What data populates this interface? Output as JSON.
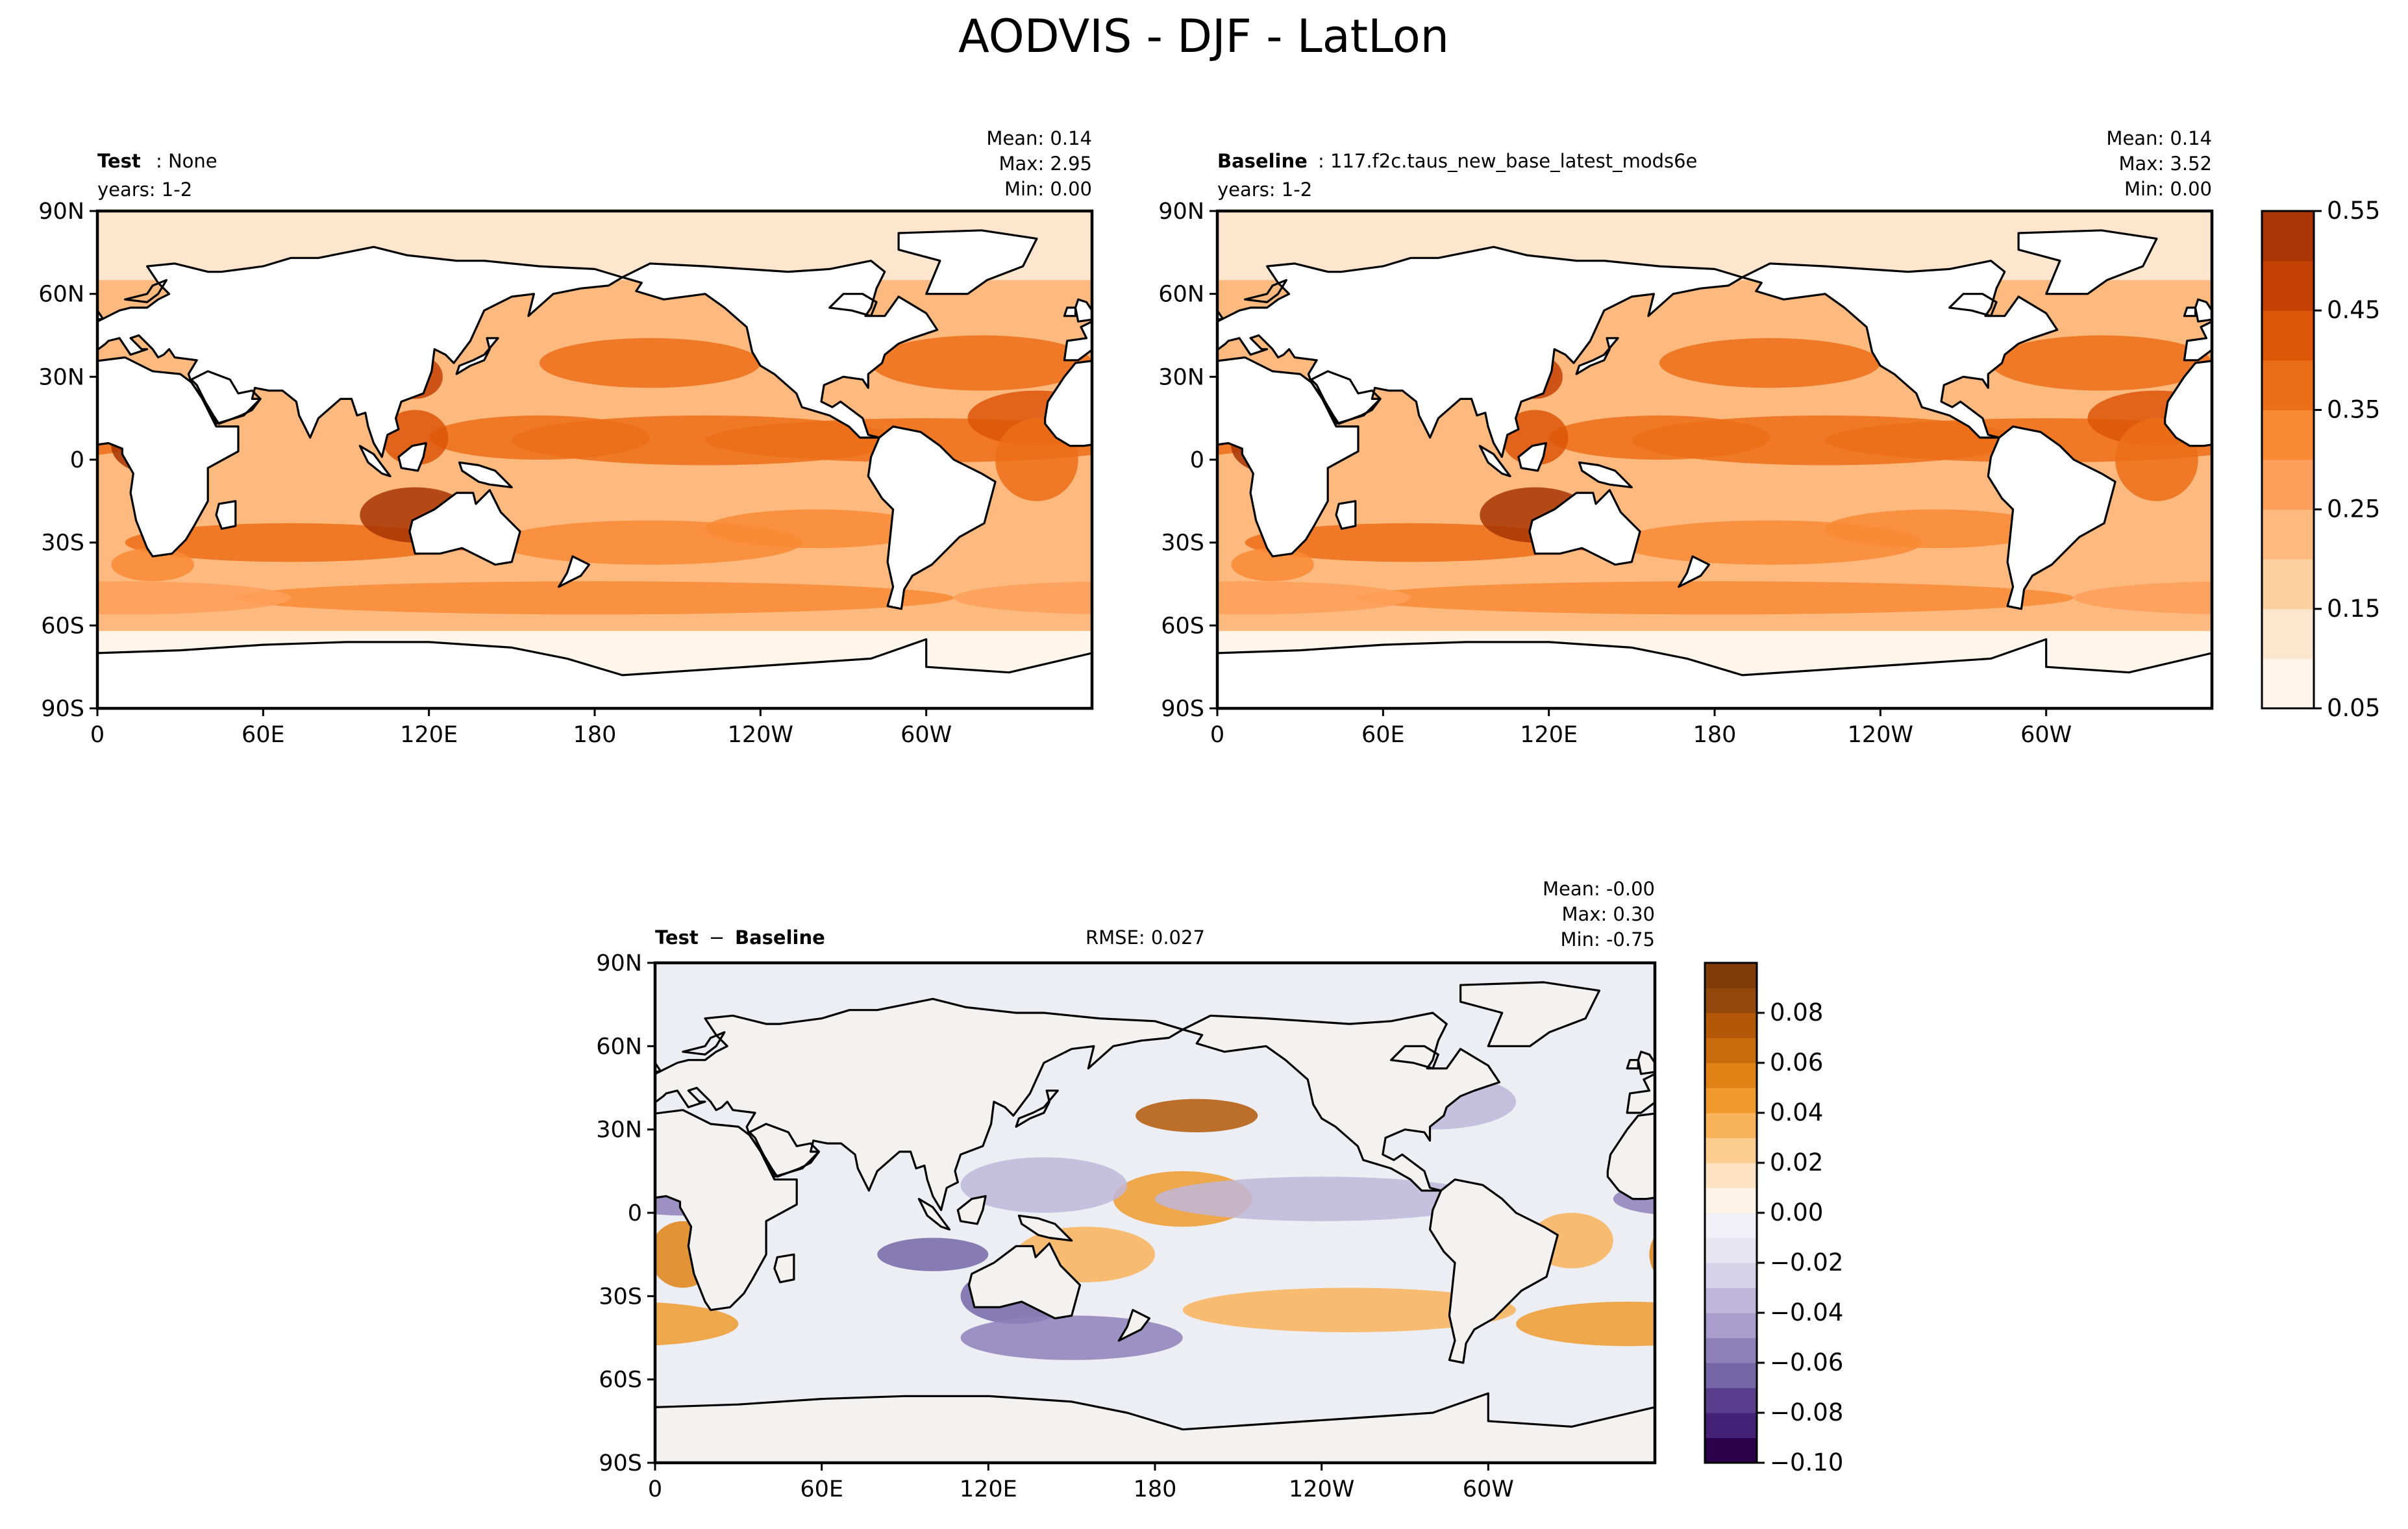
{
  "figure_title": "AODVIS - DJF - LatLon",
  "colors": {
    "land": "#ffffff",
    "coast": "#000000",
    "ocean_diff": "#eceef3",
    "oranges": [
      "#fff5eb",
      "#fee6ce",
      "#fdd0a2",
      "#fdb97e",
      "#fd9f5a",
      "#f98a35",
      "#ec6d18",
      "#dd5508",
      "#c44103",
      "#a83503",
      "#8c2d04",
      "#7f2704"
    ],
    "puor_neg": [
      "#2d004b",
      "#432177",
      "#5a3d8c",
      "#7566a8",
      "#8e80b8",
      "#a89dcb",
      "#bfb7da",
      "#d5d1e8",
      "#e7e5f1",
      "#f1f0f6"
    ],
    "puor_pos": [
      "#fdf3e6",
      "#fde3c3",
      "#fdcc8f",
      "#f9b35b",
      "#f09a2d",
      "#e08214",
      "#c96a0d",
      "#b35806",
      "#94470a",
      "#7f3b08"
    ]
  },
  "chart_data": [
    {
      "type": "heatmap",
      "id": "test",
      "label_bold": "Test",
      "label_rest": ": None",
      "years": "years: 1-2",
      "stats": {
        "mean": "Mean:  0.14",
        "max": "Max:  2.95",
        "min": "Min:  0.00"
      },
      "xlabels": [
        "0",
        "60E",
        "120E",
        "180",
        "120W",
        "60W"
      ],
      "ylabels": [
        "90N",
        "60N",
        "30N",
        "0",
        "30S",
        "60S",
        "90S"
      ],
      "lon_range": [
        0,
        360
      ],
      "lat_range": [
        -90,
        90
      ],
      "colormap": "oranges",
      "levels": [
        0.05,
        0.1,
        0.15,
        0.2,
        0.25,
        0.3,
        0.35,
        0.4,
        0.45,
        0.5,
        0.55
      ]
    },
    {
      "type": "heatmap",
      "id": "baseline",
      "label_bold": "Baseline",
      "label_rest": ": 117.f2c.taus_new_base_latest_mods6e",
      "years": "years: 1-2",
      "stats": {
        "mean": "Mean:  0.14",
        "max": "Max:  3.52",
        "min": "Min:  0.00"
      },
      "xlabels": [
        "0",
        "60E",
        "120E",
        "180",
        "120W",
        "60W"
      ],
      "ylabels": [
        "90N",
        "60N",
        "30N",
        "0",
        "30S",
        "60S",
        "90S"
      ],
      "lon_range": [
        0,
        360
      ],
      "lat_range": [
        -90,
        90
      ],
      "colormap": "oranges",
      "levels": [
        0.05,
        0.1,
        0.15,
        0.2,
        0.25,
        0.3,
        0.35,
        0.4,
        0.45,
        0.5,
        0.55
      ]
    },
    {
      "type": "heatmap",
      "id": "diff",
      "label_bold": "Test",
      "label_minus": " − ",
      "label_bold2": "Baseline",
      "rmse": "RMSE: 0.027",
      "stats": {
        "mean": "Mean: -0.00",
        "max": "Max:  0.30",
        "min": "Min: -0.75"
      },
      "xlabels": [
        "0",
        "60E",
        "120E",
        "180",
        "120W",
        "60W"
      ],
      "ylabels": [
        "90N",
        "60N",
        "30N",
        "0",
        "30S",
        "60S",
        "90S"
      ],
      "lon_range": [
        0,
        360
      ],
      "lat_range": [
        -90,
        90
      ],
      "colormap": "puor",
      "levels": [
        -0.1,
        -0.09,
        -0.08,
        -0.07,
        -0.06,
        -0.05,
        -0.04,
        -0.03,
        -0.02,
        -0.01,
        0.0,
        0.01,
        0.02,
        0.03,
        0.04,
        0.05,
        0.06,
        0.07,
        0.08,
        0.09
      ]
    }
  ],
  "colorbars": {
    "top": {
      "ticks": [
        "0.05",
        "0.15",
        "0.25",
        "0.35",
        "0.45",
        "0.55"
      ]
    },
    "bottom": {
      "ticks": [
        "−0.10",
        "−0.08",
        "−0.06",
        "−0.04",
        "−0.02",
        "0.00",
        "0.02",
        "0.04",
        "0.06",
        "0.08"
      ]
    }
  }
}
